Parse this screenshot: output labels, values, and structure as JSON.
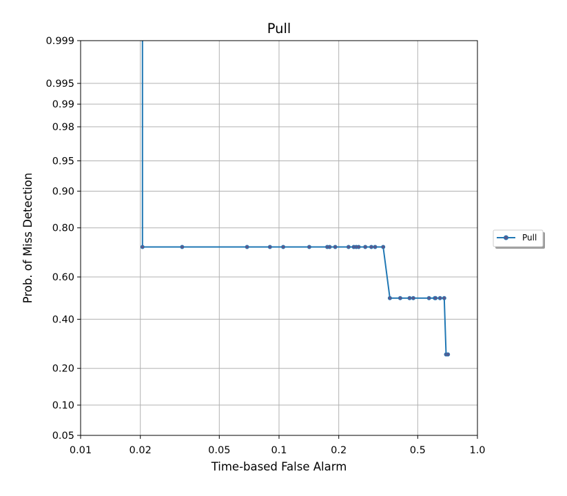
{
  "chart_data": {
    "type": "line",
    "title": "Pull",
    "xlabel": "Time-based False Alarm",
    "ylabel": "Prob. of Miss Detection",
    "x_scale": "log",
    "y_scale": "probit",
    "xlim": [
      0.01,
      1.0
    ],
    "ylim": [
      0.05,
      0.999
    ],
    "x_ticks": [
      0.01,
      0.02,
      0.05,
      0.1,
      0.2,
      0.5,
      1.0
    ],
    "x_tick_labels": [
      "0.01",
      "0.02",
      "0.05",
      "0.1",
      "0.2",
      "0.5",
      "1.0"
    ],
    "y_ticks": [
      0.05,
      0.1,
      0.2,
      0.4,
      0.6,
      0.8,
      0.9,
      0.95,
      0.98,
      0.99,
      0.995,
      0.999
    ],
    "y_tick_labels": [
      "0.05",
      "0.10",
      "0.20",
      "0.40",
      "0.60",
      "0.80",
      "0.90",
      "0.95",
      "0.98",
      "0.99",
      "0.995",
      "0.999"
    ],
    "grid": true,
    "legend": {
      "placement": "outside-right",
      "entries": [
        "Pull"
      ]
    },
    "series": [
      {
        "name": "Pull",
        "color": "#1f77b4",
        "marker_color": "#5a5a8f",
        "x": [
          0.0205,
          0.0205,
          0.0325,
          0.069,
          0.09,
          0.105,
          0.142,
          0.175,
          0.18,
          0.192,
          0.224,
          0.238,
          0.245,
          0.252,
          0.272,
          0.292,
          0.305,
          0.335,
          0.362,
          0.408,
          0.455,
          0.475,
          0.57,
          0.61,
          0.615,
          0.648,
          0.68,
          0.695,
          0.71
        ],
        "y": [
          0.999,
          0.73,
          0.73,
          0.73,
          0.73,
          0.73,
          0.73,
          0.73,
          0.73,
          0.73,
          0.73,
          0.73,
          0.73,
          0.73,
          0.73,
          0.73,
          0.73,
          0.73,
          0.5,
          0.5,
          0.5,
          0.5,
          0.5,
          0.5,
          0.5,
          0.5,
          0.5,
          0.25,
          0.25
        ],
        "markers": [
          false,
          true,
          true,
          true,
          true,
          true,
          true,
          true,
          true,
          true,
          true,
          true,
          true,
          true,
          true,
          true,
          true,
          true,
          true,
          true,
          true,
          true,
          true,
          true,
          true,
          true,
          true,
          true,
          true
        ]
      }
    ]
  }
}
